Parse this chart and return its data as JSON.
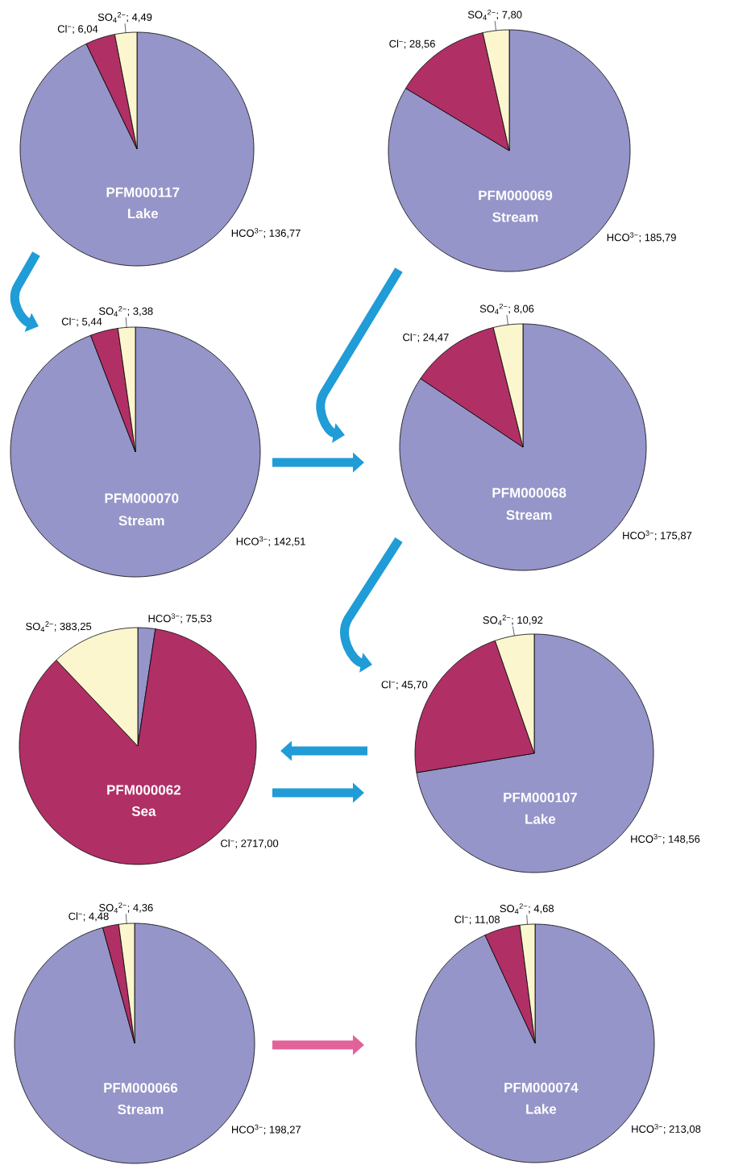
{
  "chart_data": [
    {
      "type": "pie",
      "title": "PFM000117",
      "subtitle": "Lake",
      "categories": [
        null,
        null,
        null
      ],
      "values": [
        136.77,
        6.04,
        4.49
      ],
      "value_labels": [
        "HCO$^{3−}$; 136,77",
        "Cl$^{−}$; 6,04",
        "SO$_{4}$$^{2−}$; 4,49"
      ],
      "colors": [
        "#9595c9",
        "#b03066",
        "#fbf6cd"
      ]
    },
    {
      "type": "pie",
      "title": "PFM000069",
      "subtitle": "Stream",
      "categories": [
        null,
        null,
        null
      ],
      "values": [
        185.79,
        28.56,
        7.8
      ],
      "value_labels": [
        "HCO$^{3−}$; 185,79",
        "Cl$^{−}$; 28,56",
        "SO$_{4}$$^{2−}$; 7,80"
      ],
      "colors": [
        "#9595c9",
        "#b03066",
        "#fbf6cd"
      ]
    },
    {
      "type": "pie",
      "title": "PFM000070",
      "subtitle": "Stream",
      "categories": [
        null,
        null,
        null
      ],
      "values": [
        142.51,
        5.44,
        3.38
      ],
      "value_labels": [
        "HCO$^{3−}$; 142,51",
        "Cl$^{−}$; 5,44",
        "SO$_{4}$$^{2−}$; 3,38"
      ],
      "colors": [
        "#9595c9",
        "#b03066",
        "#fbf6cd"
      ]
    },
    {
      "type": "pie",
      "title": "PFM000068",
      "subtitle": "Stream",
      "categories": [
        null,
        null,
        null
      ],
      "values": [
        175.87,
        24.47,
        8.06
      ],
      "value_labels": [
        "HCO$^{3−}$; 175,87",
        "Cl$^{−}$; 24,47",
        "SO$_{4}$$^{2−}$; 8,06"
      ],
      "colors": [
        "#9595c9",
        "#b03066",
        "#fbf6cd"
      ]
    },
    {
      "type": "pie",
      "title": "PFM000062",
      "subtitle": "Sea",
      "categories": [
        null,
        null,
        null
      ],
      "values": [
        75.53,
        2717.0,
        383.25
      ],
      "value_labels": [
        "HCO$^{3−}$; 75,53",
        "Cl$^{−}$; 2717,00",
        "SO$_{4}$$^{2−}$; 383,25"
      ],
      "colors": [
        "#9595c9",
        "#b03066",
        "#fbf6cd"
      ]
    },
    {
      "type": "pie",
      "title": "PFM000107",
      "subtitle": "Lake",
      "categories": [
        null,
        null,
        null
      ],
      "values": [
        148.56,
        45.7,
        10.92
      ],
      "value_labels": [
        "HCO$^{3−}$; 148,56",
        "Cl$^{−}$; 45,70",
        "SO$_{4}$$^{2−}$; 10,92"
      ],
      "colors": [
        "#9595c9",
        "#b03066",
        "#fbf6cd"
      ]
    },
    {
      "type": "pie",
      "title": "PFM000066",
      "subtitle": "Stream",
      "categories": [
        null,
        null,
        null
      ],
      "values": [
        198.27,
        4.48,
        4.36
      ],
      "value_labels": [
        "HCO$^{3−}$; 198,27",
        "Cl$^{−}$; 4,48",
        "SO$_{4}$$^{2−}$; 4,36"
      ],
      "colors": [
        "#9595c9",
        "#b03066",
        "#fbf6cd"
      ]
    },
    {
      "type": "pie",
      "title": "PFM000074",
      "subtitle": "Lake",
      "categories": [
        null,
        null,
        null
      ],
      "values": [
        213.08,
        11.08,
        4.68
      ],
      "value_labels": [
        "HCO$^{3−}$; 213,08",
        "Cl$^{−}$; 11,08",
        "SO$_{4}$$^{2−}$; 4,68"
      ],
      "colors": [
        "#9595c9",
        "#b03066",
        "#fbf6cd"
      ]
    }
  ]
}
